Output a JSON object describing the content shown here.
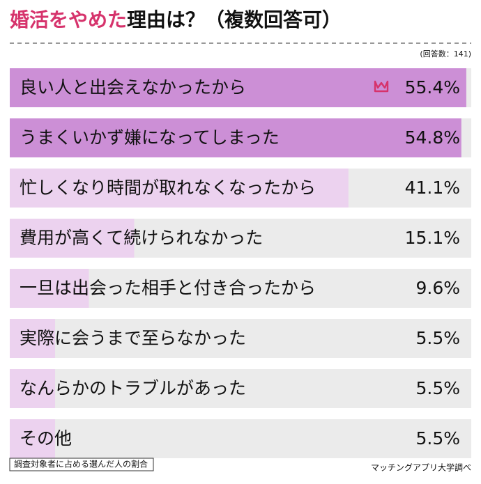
{
  "chart_data": {
    "type": "bar",
    "orientation": "horizontal",
    "title_parts": [
      "婚活をやめた",
      "理由は？（複数回答可）"
    ],
    "title_colors": [
      "#d6336c",
      "#111111"
    ],
    "subtitle": "(回答数：141)",
    "categories": [
      "良い人と出会えなかったから",
      "うまくいかず嫌になってしまった",
      "忙しくなり時間が取れなくなったから",
      "費用が高くて続けられなかった",
      "一旦は出会った相手と付き合ったから",
      "実際に会うまで至らなかった",
      "なんらかのトラブルがあった",
      "その他"
    ],
    "values": [
      55.4,
      54.8,
      41.1,
      15.1,
      9.6,
      5.5,
      5.5,
      5.5
    ],
    "value_labels": [
      "55.4%",
      "54.8%",
      "41.1%",
      "15.1%",
      "9.6%",
      "5.5%",
      "5.5%",
      "5.5%"
    ],
    "colors": [
      "#cc8fd6",
      "#cc8fd6",
      "#ecd2ef",
      "#ecd2ef",
      "#ecd2ef",
      "#ecd2ef",
      "#ecd2ef",
      "#ecd2ef"
    ],
    "track_color": "#ebebeb",
    "xlim": [
      0,
      56
    ],
    "footnote": "調査対象者に占める選んだ人の割合",
    "source": "マッチングアプリ大学調べ"
  }
}
